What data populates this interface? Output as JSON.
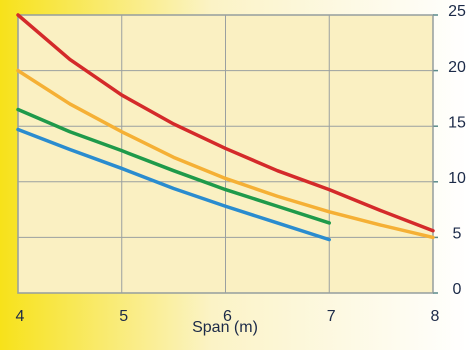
{
  "chart_data": {
    "type": "line",
    "xlabel": "Span (m)",
    "x": [
      4,
      4.5,
      5,
      5.5,
      6,
      6.5,
      7,
      7.5,
      8
    ],
    "series": [
      {
        "color": "#d42a2a",
        "values": [
          25,
          21,
          17.8,
          15.2,
          13,
          11,
          9.3,
          7.4,
          5.6
        ]
      },
      {
        "color": "#f5b035",
        "values": [
          20,
          17,
          14.5,
          12.2,
          10.3,
          8.7,
          7.3,
          6.1,
          5
        ]
      },
      {
        "color": "#1f9a4a",
        "values": [
          16.5,
          14.5,
          12.8,
          11,
          9.3,
          7.8,
          6.3,
          null,
          null
        ]
      },
      {
        "color": "#2a8ccf",
        "values": [
          14.7,
          12.9,
          11.2,
          9.4,
          7.8,
          6.3,
          4.8,
          null,
          null
        ]
      }
    ],
    "xlim": [
      4,
      8
    ],
    "xticks": [
      4,
      5,
      6,
      7,
      8
    ],
    "ylim": [
      0,
      25
    ],
    "yticks": [
      0,
      5,
      10,
      15,
      20,
      25
    ],
    "grid": true
  }
}
